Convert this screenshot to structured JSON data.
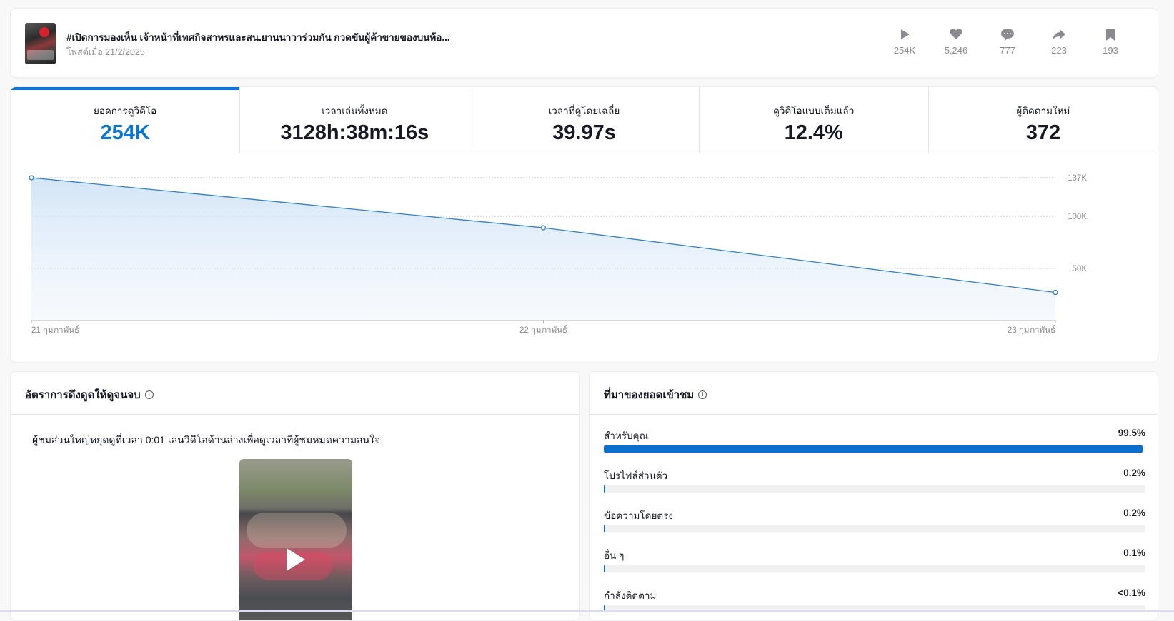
{
  "post": {
    "title": "#เปิดการมองเห็น เจ้าหน้าที่เทศกิจสาทรและสน.ยานนาวาร่วมกัน กวดขันผู้ค้าขายของบนท้อ...",
    "date": "โพสต์เมื่อ 21/2/2025",
    "stats": [
      {
        "icon": "play-icon",
        "value": "254K"
      },
      {
        "icon": "heart-icon",
        "value": "5,246"
      },
      {
        "icon": "comment-icon",
        "value": "777"
      },
      {
        "icon": "share-icon",
        "value": "223"
      },
      {
        "icon": "bookmark-icon",
        "value": "193"
      }
    ]
  },
  "metrics": {
    "tabs": [
      {
        "label": "ยอดการดูวิดีโอ",
        "value": "254K",
        "active": true
      },
      {
        "label": "เวลาเล่นทั้งหมด",
        "value": "3128h:38m:16s",
        "active": false
      },
      {
        "label": "เวลาที่ดูโดยเฉลี่ย",
        "value": "39.97s",
        "active": false
      },
      {
        "label": "ดูวิดีโอแบบเต็มแล้ว",
        "value": "12.4%",
        "active": false
      },
      {
        "label": "ผู้ติดตามใหม่",
        "value": "372",
        "active": false
      }
    ]
  },
  "chart_data": {
    "type": "area",
    "x": [
      "21 กุมภาพันธ์",
      "22 กุมภาพันธ์",
      "23 กุมภาพันธ์"
    ],
    "values": [
      137000,
      89000,
      27000
    ],
    "yticks": [
      137000,
      100000,
      50000
    ],
    "ytick_labels": [
      "137K",
      "100K",
      "50K"
    ],
    "ylim": [
      0,
      137000
    ],
    "grid": true,
    "color": "#2f80c8"
  },
  "retention": {
    "title": "อัตราการดึงดูดให้ดูจนจบ",
    "description": "ผู้ชมส่วนใหญ่หยุดดูที่เวลา 0:01 เล่นวิดีโอด้านล่างเพื่อดูเวลาที่ผู้ชมหมดความสนใจ"
  },
  "traffic": {
    "title": "ที่มาของยอดเข้าชม",
    "accent": "#0b6fcf",
    "sources": [
      {
        "label": "สำหรับคุณ",
        "value": "99.5%",
        "pct": 99.5
      },
      {
        "label": "โปรไฟล์ส่วนตัว",
        "value": "0.2%",
        "pct": 0.2
      },
      {
        "label": "ข้อความโดยตรง",
        "value": "0.2%",
        "pct": 0.2
      },
      {
        "label": "อื่น ๆ",
        "value": "0.1%",
        "pct": 0.1
      },
      {
        "label": "กำลังติดตาม",
        "value": "<0.1%",
        "pct": 0.05
      }
    ]
  }
}
